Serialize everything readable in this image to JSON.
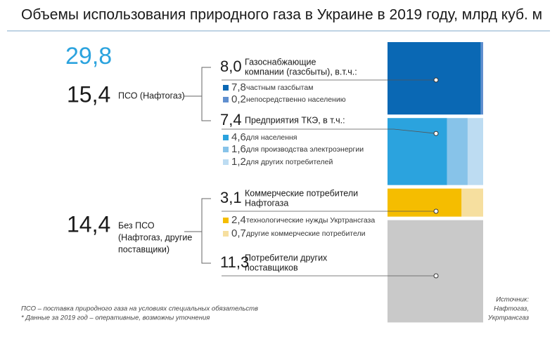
{
  "title": "Объемы использования природного газа в Украине в 2019 году, млрд куб. м",
  "total": {
    "value": 29.8,
    "label": "29,8"
  },
  "groups": [
    {
      "value": 15.4,
      "label": "15,4",
      "name": [
        "ПСО (Нафтогаз)"
      ],
      "segments": [
        {
          "value": 8.0,
          "label": "8,0",
          "name": [
            "Газоснабжающие",
            "компании (газсбыты), в.т.ч.:"
          ],
          "parts": [
            {
              "value": 7.8,
              "label": "7,8",
              "name": "частным газсбытам",
              "color": "#0a68b4"
            },
            {
              "value": 0.2,
              "label": "0,2",
              "name": "непосредственно населению",
              "color": "#5f8fcf"
            }
          ]
        },
        {
          "value": 7.4,
          "label": "7,4",
          "name": [
            "Предприятия ТКЭ, в т.ч.:"
          ],
          "parts": [
            {
              "value": 4.6,
              "label": "4,6",
              "name": "для населення",
              "color": "#2ba3de"
            },
            {
              "value": 1.6,
              "label": "1,6",
              "name": "для производства электроэнергии",
              "color": "#87c3e9"
            },
            {
              "value": 1.2,
              "label": "1,2",
              "name": "для других потребителей",
              "color": "#bddcf2"
            }
          ]
        }
      ]
    },
    {
      "value": 14.4,
      "label": "14,4",
      "name": [
        "Без ПСО",
        "(Нафтогаз, другие",
        "поставщики)"
      ],
      "segments": [
        {
          "value": 3.1,
          "label": "3,1",
          "name": [
            "Коммерческие потребители",
            "Нафтогаза"
          ],
          "parts": [
            {
              "value": 2.4,
              "label": "2,4",
              "name": "технологические нужды Укртрансгаза",
              "color": "#f5bd00"
            },
            {
              "value": 0.7,
              "label": "0,7",
              "name": "другие коммерческие потребители",
              "color": "#f6df9f"
            }
          ]
        },
        {
          "value": 11.3,
          "label": "11,3",
          "name": [
            "Потребители других",
            "поставщиков"
          ],
          "color": "#c9c9c9"
        }
      ]
    }
  ],
  "footnotes": [
    "ПСО – поставка природного газа на условиях специальных обязательств",
    "* Данные за 2019 год – оперативные, возможны уточнения"
  ],
  "source": [
    "Источник:",
    "Нафтогаз,",
    "Укртрансгаз"
  ]
}
